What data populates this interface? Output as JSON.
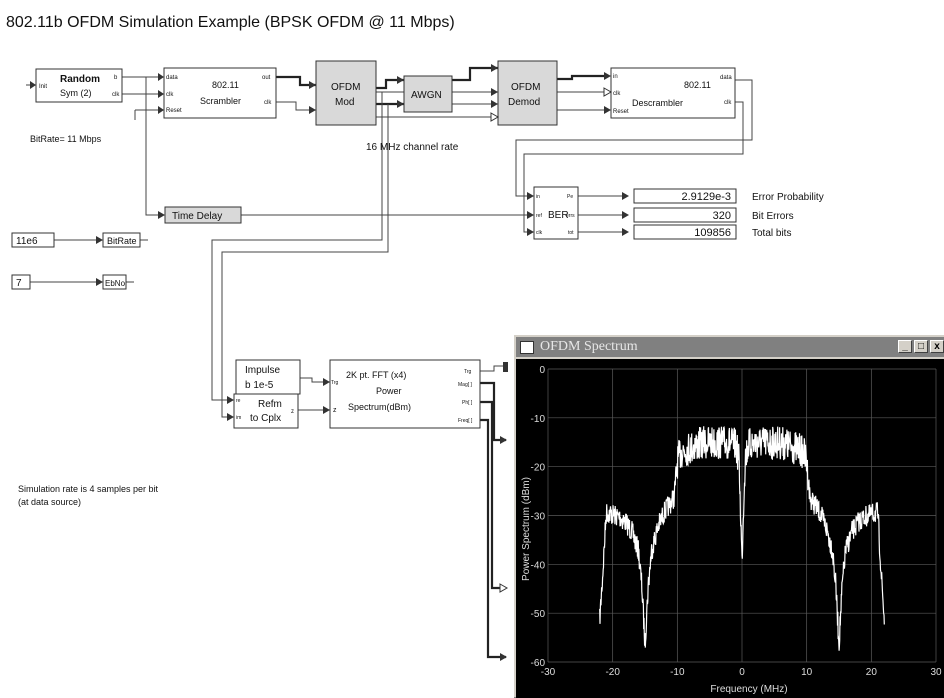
{
  "page_title": "802.11b OFDM Simulation Example  (BPSK OFDM @ 11 Mbps)",
  "blocks": {
    "random": {
      "line1": "Random",
      "line2": "Sym (2)",
      "port_in": "Init",
      "port_b": "b",
      "port_clk": "clk"
    },
    "scrambler": {
      "line1": "802.11",
      "line2": "Scrambler",
      "port_data": "data",
      "port_clk": "clk",
      "port_reset": "Reset",
      "port_out": "out",
      "port_clk_out": "clk"
    },
    "ofdm_mod": {
      "line1": "OFDM",
      "line2": "Mod"
    },
    "awgn": {
      "label": "AWGN"
    },
    "ofdm_demod": {
      "line1": "OFDM",
      "line2": "Demod"
    },
    "descrambler": {
      "line1": "802.11",
      "line2": "Descrambler",
      "port_in": "in",
      "port_clk": "clk",
      "port_reset": "Reset",
      "port_data": "data",
      "port_clk_out": "clk"
    },
    "ber": {
      "label": "BER",
      "port_in": "in",
      "port_ref": "ref",
      "port_clk": "clk",
      "port_pe": "Pe",
      "port_errs": "errs",
      "port_tot": "tot"
    },
    "time_delay": {
      "label": "Time Delay"
    },
    "bitrate_const": {
      "value": "11e6"
    },
    "bitrate_var": {
      "label": "BitRate"
    },
    "ebno_const": {
      "value": "7"
    },
    "ebno_var": {
      "label": "EbNo"
    },
    "impulse": {
      "line1": "Impulse",
      "line2": "b 1e-5"
    },
    "refm": {
      "line1": "Refm",
      "line2": "to Cplx",
      "port_re": "re",
      "port_im": "im",
      "port_z": "z"
    },
    "fft": {
      "line1": "2K pt. FFT (x4)",
      "line2": "Power",
      "line3": "Spectrum(dBm)",
      "port_trg": "Trg",
      "port_z": "z",
      "port_trg_out": "Trg",
      "port_mag": "Mag[ ]",
      "port_ph": "Ph[ ]",
      "port_freq": "Freq[ ]"
    }
  },
  "labels": {
    "bitrate_note": "BitRate= 11 Mbps",
    "channel_rate": "16 MHz channel rate",
    "sim_note_line1": "Simulation rate is 4 samples per bit",
    "sim_note_line2": "(at data source)"
  },
  "results": {
    "error_probability": {
      "value": "2.9129e-3",
      "label": "Error Probability"
    },
    "bit_errors": {
      "value": "320",
      "label": "Bit Errors"
    },
    "total_bits": {
      "value": "109856",
      "label": "Total bits"
    }
  },
  "spectrum_window": {
    "title": "OFDM Spectrum",
    "btn_min": "_",
    "btn_max": "□",
    "btn_close": "x",
    "chart_data": {
      "type": "line",
      "xlabel": "Frequency (MHz)",
      "ylabel": "Power Spectrum (dBm)",
      "xlim": [
        -30,
        30
      ],
      "ylim": [
        -60,
        0
      ],
      "xticks": [
        "-30",
        "-20",
        "-10",
        "0",
        "10",
        "20",
        "30"
      ],
      "yticks": [
        "0",
        "-10",
        "-20",
        "-30",
        "-40",
        "-50",
        "-60"
      ],
      "grid": true,
      "background": "#000000",
      "line_color": "#ffffff",
      "series": [
        {
          "x": [
            -22,
            -21.5,
            -21,
            -20,
            -19,
            -18,
            -17,
            -16,
            -15.5,
            -15,
            -14.5,
            -14,
            -13,
            -12,
            -11,
            -10.5,
            -10,
            -9.5,
            -9,
            -8,
            -6,
            -4,
            -2,
            -1,
            -0.5,
            0,
            0.5,
            1,
            2,
            4,
            6,
            8,
            9,
            9.5,
            10,
            10.5,
            11,
            12,
            13,
            14,
            14.5,
            15,
            15.5,
            16,
            17,
            18,
            19,
            20,
            21,
            21.5,
            22
          ],
          "y": [
            -50,
            -40,
            -28,
            -28.5,
            -29,
            -30,
            -32,
            -36,
            -43,
            -55,
            -43,
            -36,
            -31,
            -28,
            -26,
            -25,
            -17,
            -15,
            -14.5,
            -14,
            -13,
            -13,
            -13,
            -13.5,
            -16,
            -38,
            -16,
            -13.5,
            -13,
            -13,
            -13,
            -14,
            -14.5,
            -15,
            -17,
            -25,
            -26,
            -28,
            -31,
            -36,
            -43,
            -55,
            -43,
            -36,
            -32,
            -30,
            -29,
            -28.5,
            -28,
            -40,
            -50
          ]
        }
      ]
    }
  }
}
